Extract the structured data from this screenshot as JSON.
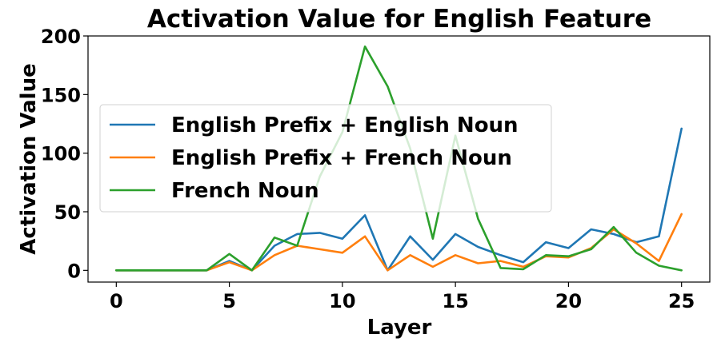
{
  "chart_data": {
    "type": "line",
    "title": "Activation Value for English Feature",
    "xlabel": "Layer",
    "ylabel": "Activation Value",
    "xlim": [
      -1.25,
      26.25
    ],
    "ylim": [
      -10,
      200
    ],
    "xticks": [
      0,
      5,
      10,
      15,
      20,
      25
    ],
    "yticks": [
      0,
      50,
      100,
      150,
      200
    ],
    "grid": false,
    "legend_position": "center-left",
    "x": [
      0,
      1,
      2,
      3,
      4,
      5,
      6,
      7,
      8,
      9,
      10,
      11,
      12,
      13,
      14,
      15,
      16,
      17,
      18,
      19,
      20,
      21,
      22,
      23,
      24,
      25
    ],
    "series": [
      {
        "name": "English Prefix + English Noun",
        "color": "#1f77b4",
        "values": [
          0,
          0,
          0,
          0,
          0,
          8,
          0,
          21,
          31,
          32,
          27,
          47,
          0,
          29,
          9,
          31,
          20,
          13,
          7,
          24,
          19,
          35,
          31,
          24,
          29,
          121
        ]
      },
      {
        "name": "English Prefix + French Noun",
        "color": "#ff7f0e",
        "values": [
          0,
          0,
          0,
          0,
          0,
          7,
          0,
          13,
          21,
          18,
          15,
          29,
          0,
          13,
          3,
          13,
          6,
          8,
          3,
          12,
          11,
          19,
          35,
          23,
          8,
          48
        ]
      },
      {
        "name": "French Noun",
        "color": "#2ca02c",
        "values": [
          0,
          0,
          0,
          0,
          0,
          14,
          0,
          28,
          21,
          80,
          118,
          191,
          157,
          104,
          27,
          115,
          44,
          2,
          1,
          13,
          12,
          18,
          37,
          15,
          4,
          0
        ]
      }
    ]
  }
}
